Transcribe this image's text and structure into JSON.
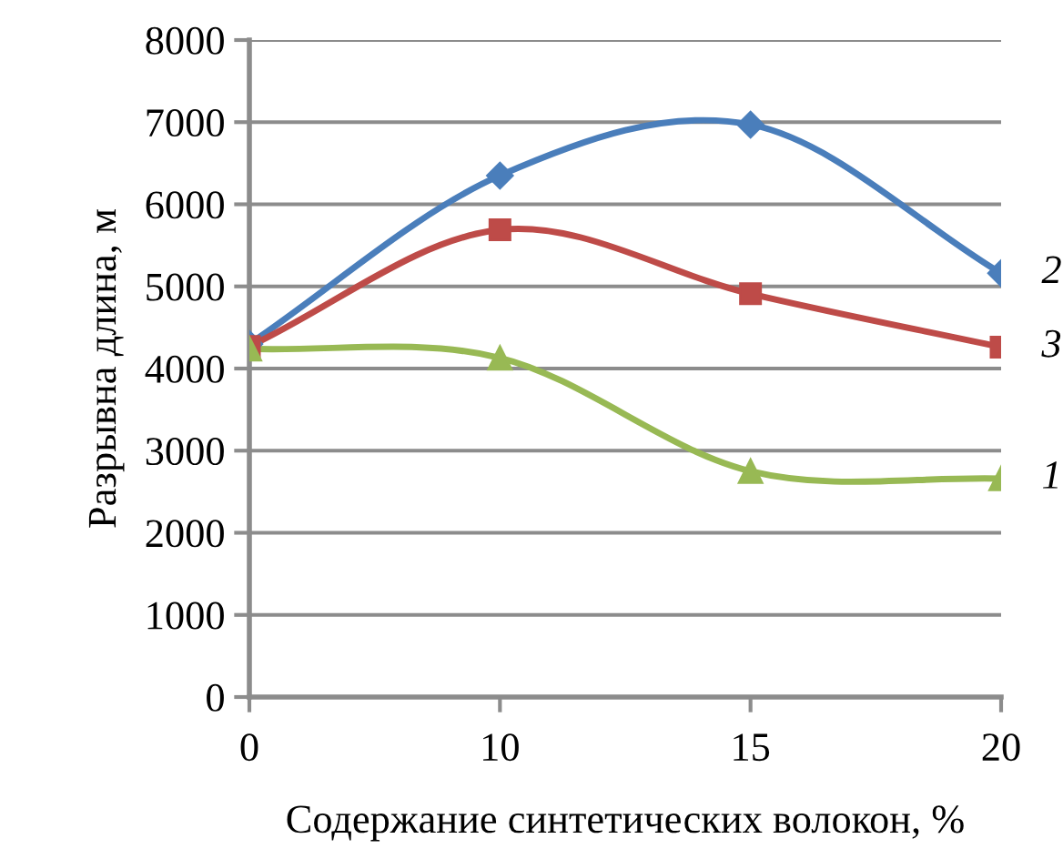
{
  "chart_data": {
    "type": "line",
    "xlabel": "Содержание синтетических волокон, %",
    "ylabel": "Разрывна длина, м",
    "categories": [
      "0",
      "10",
      "15",
      "20"
    ],
    "series": [
      {
        "name": "2",
        "color": "#4a7ebb",
        "marker": "diamond",
        "values": [
          4300,
          6350,
          6970,
          5160
        ]
      },
      {
        "name": "3",
        "color": "#be4b48",
        "marker": "square",
        "values": [
          4270,
          5690,
          4910,
          4260
        ]
      },
      {
        "name": "1",
        "color": "#98b954",
        "marker": "triangle",
        "values": [
          4240,
          4130,
          2750,
          2660
        ]
      }
    ],
    "ylim": [
      0,
      8000
    ],
    "yticks": [
      0,
      1000,
      2000,
      3000,
      4000,
      5000,
      6000,
      7000,
      8000
    ],
    "grid": "y",
    "legend": false
  }
}
